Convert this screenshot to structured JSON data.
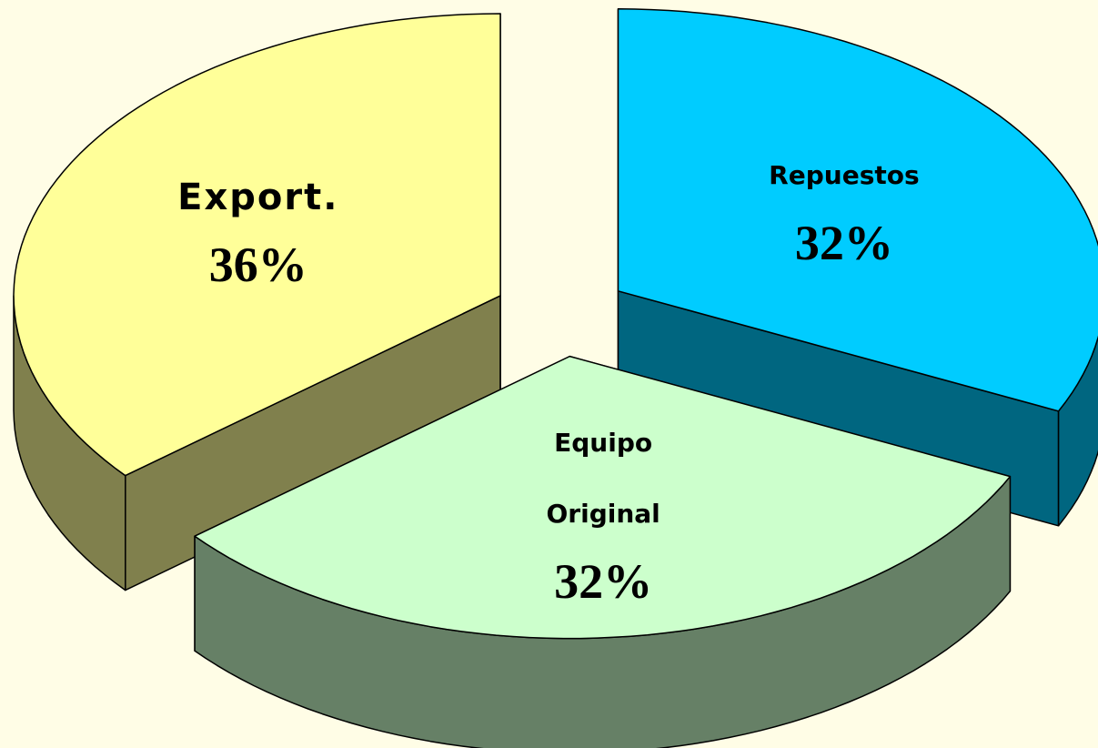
{
  "chart_data": {
    "type": "pie3d",
    "categories": [
      "Repuestos",
      "Equipo Original",
      "Export."
    ],
    "values": [
      32,
      32,
      36
    ],
    "value_labels": [
      "32%",
      "32%",
      "36%"
    ],
    "colors": [
      "#00ccff",
      "#ccffcc",
      "#ffff99"
    ]
  }
}
